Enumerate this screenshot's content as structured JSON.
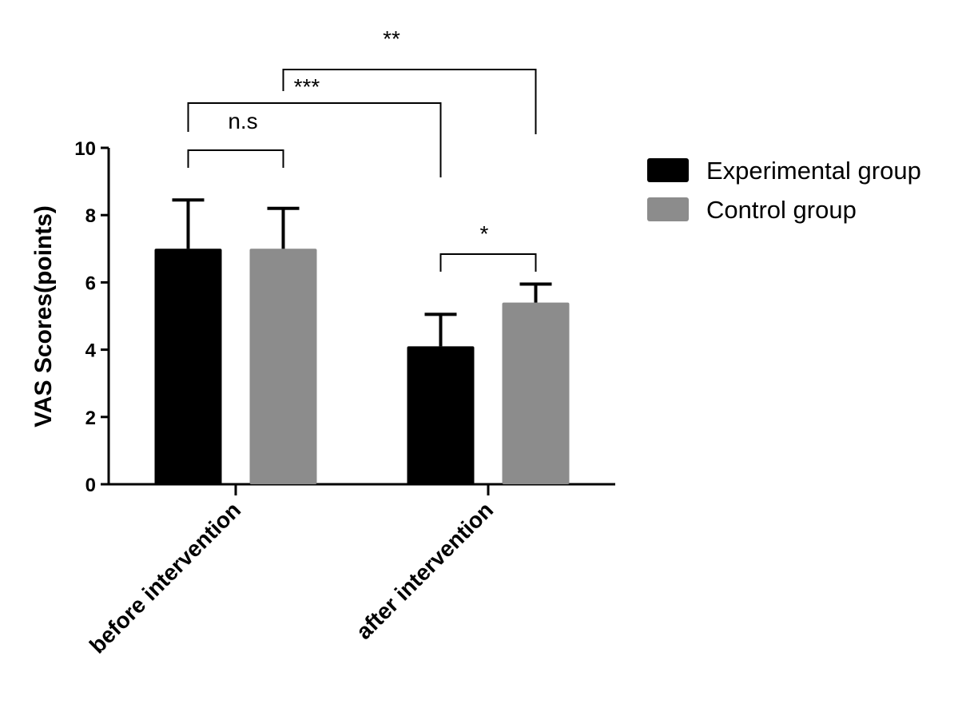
{
  "chart_data": {
    "type": "bar",
    "categories": [
      "before intervention",
      "after intervention"
    ],
    "series": [
      {
        "name": "Experimental group",
        "values": [
          7.0,
          4.1
        ],
        "errors": [
          1.45,
          0.95
        ],
        "color": "#000000"
      },
      {
        "name": "Control group",
        "values": [
          7.0,
          5.4
        ],
        "errors": [
          1.2,
          0.55
        ],
        "color": "#8c8c8c"
      }
    ],
    "ylabel": "VAS Scores(points)",
    "xlabel": "",
    "ylim": [
      0,
      10
    ],
    "yticks": [
      "0",
      "2",
      "4",
      "6",
      "8",
      "10"
    ],
    "grid": false,
    "legend_position": "right",
    "significance": [
      {
        "label": "n.s",
        "from": "before intervention / Experimental group",
        "to": "before intervention / Control group"
      },
      {
        "label": "*",
        "from": "after intervention / Experimental group",
        "to": "after intervention / Control group"
      },
      {
        "label": "***",
        "from": "before intervention / Experimental group",
        "to": "after intervention / Experimental group"
      },
      {
        "label": "**",
        "from": "before intervention / Control group",
        "to": "after intervention / Control group"
      }
    ]
  }
}
